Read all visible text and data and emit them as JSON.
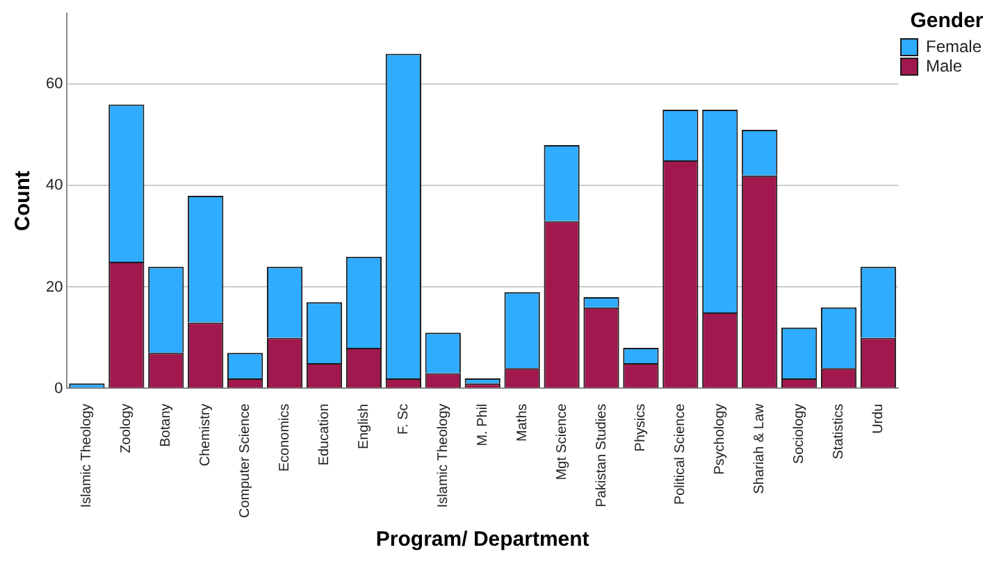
{
  "chart_data": {
    "type": "bar",
    "xlabel": "Program/ Department",
    "ylabel": "Count",
    "legend_title": "Gender",
    "legend": "top right",
    "grid": "y",
    "stacked": true,
    "categories": [
      "Islamic Theology",
      "Zoology",
      "Botany",
      "Chemistry",
      "Computer Science",
      "Economics",
      "Education",
      "English",
      "F. Sc",
      "Islamic Theology",
      "M. Phil",
      "Maths",
      "Mgt Science",
      "Pakistan Studies",
      "Physics",
      "Political Science",
      "Psychology",
      "Shariah & Law",
      "Sociology",
      "Statistics",
      "Urdu"
    ],
    "series": [
      {
        "name": "Male",
        "color": "#a0184e",
        "values": [
          0,
          25,
          7,
          13,
          2,
          10,
          5,
          8,
          2,
          3,
          1,
          4,
          33,
          16,
          5,
          45,
          15,
          42,
          2,
          4,
          10
        ]
      },
      {
        "name": "Female",
        "color": "#30acff",
        "values": [
          1,
          31,
          17,
          25,
          5,
          14,
          12,
          18,
          64,
          8,
          1,
          15,
          15,
          2,
          3,
          10,
          40,
          9,
          10,
          12,
          14
        ]
      }
    ],
    "ylim": [
      0,
      74
    ],
    "yticks": [
      0,
      20,
      40,
      60
    ]
  }
}
